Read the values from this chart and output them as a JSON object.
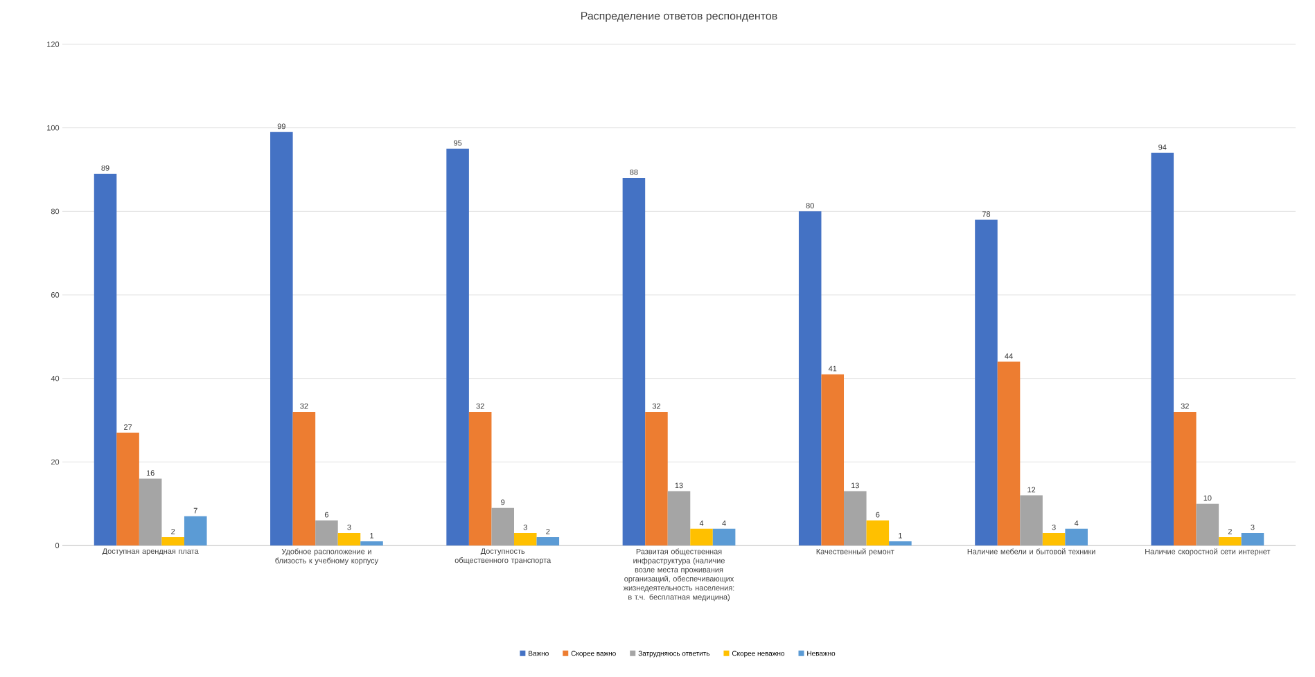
{
  "chart_data": {
    "type": "bar",
    "title": "Распределение ответов респондентов",
    "categories": [
      "Доступная арендная плата",
      "Удобное расположение и близость к учебному корпусу",
      "Доступность общественного транспорта",
      "Развитая общественная инфраструктура (наличие возле места проживания организаций, обеспечивающих жизнедеятельность населения: в т.ч. бесплатная медицина)",
      "Качественный ремонт",
      "Наличие мебели и бытовой техники",
      "Наличие скоростной сети интернет"
    ],
    "series": [
      {
        "name": "Важно",
        "color": "#4472c4",
        "values": [
          89,
          99,
          95,
          88,
          80,
          78,
          94
        ]
      },
      {
        "name": "Скорее важно",
        "color": "#ed7d31",
        "values": [
          27,
          32,
          32,
          32,
          41,
          44,
          32
        ]
      },
      {
        "name": "Затрудняюсь ответить",
        "color": "#a5a5a5",
        "values": [
          16,
          6,
          9,
          13,
          13,
          12,
          10
        ]
      },
      {
        "name": "Скорее неважно",
        "color": "#ffc000",
        "values": [
          2,
          3,
          3,
          4,
          6,
          3,
          2
        ]
      },
      {
        "name": "Неважно",
        "color": "#5b9bd5",
        "values": [
          7,
          1,
          2,
          4,
          1,
          4,
          3
        ]
      }
    ],
    "ylim": [
      0,
      120
    ],
    "yticks": [
      0,
      20,
      40,
      60,
      80,
      100,
      120
    ],
    "grid": "y",
    "legend": "bottom",
    "data_labels": true
  }
}
